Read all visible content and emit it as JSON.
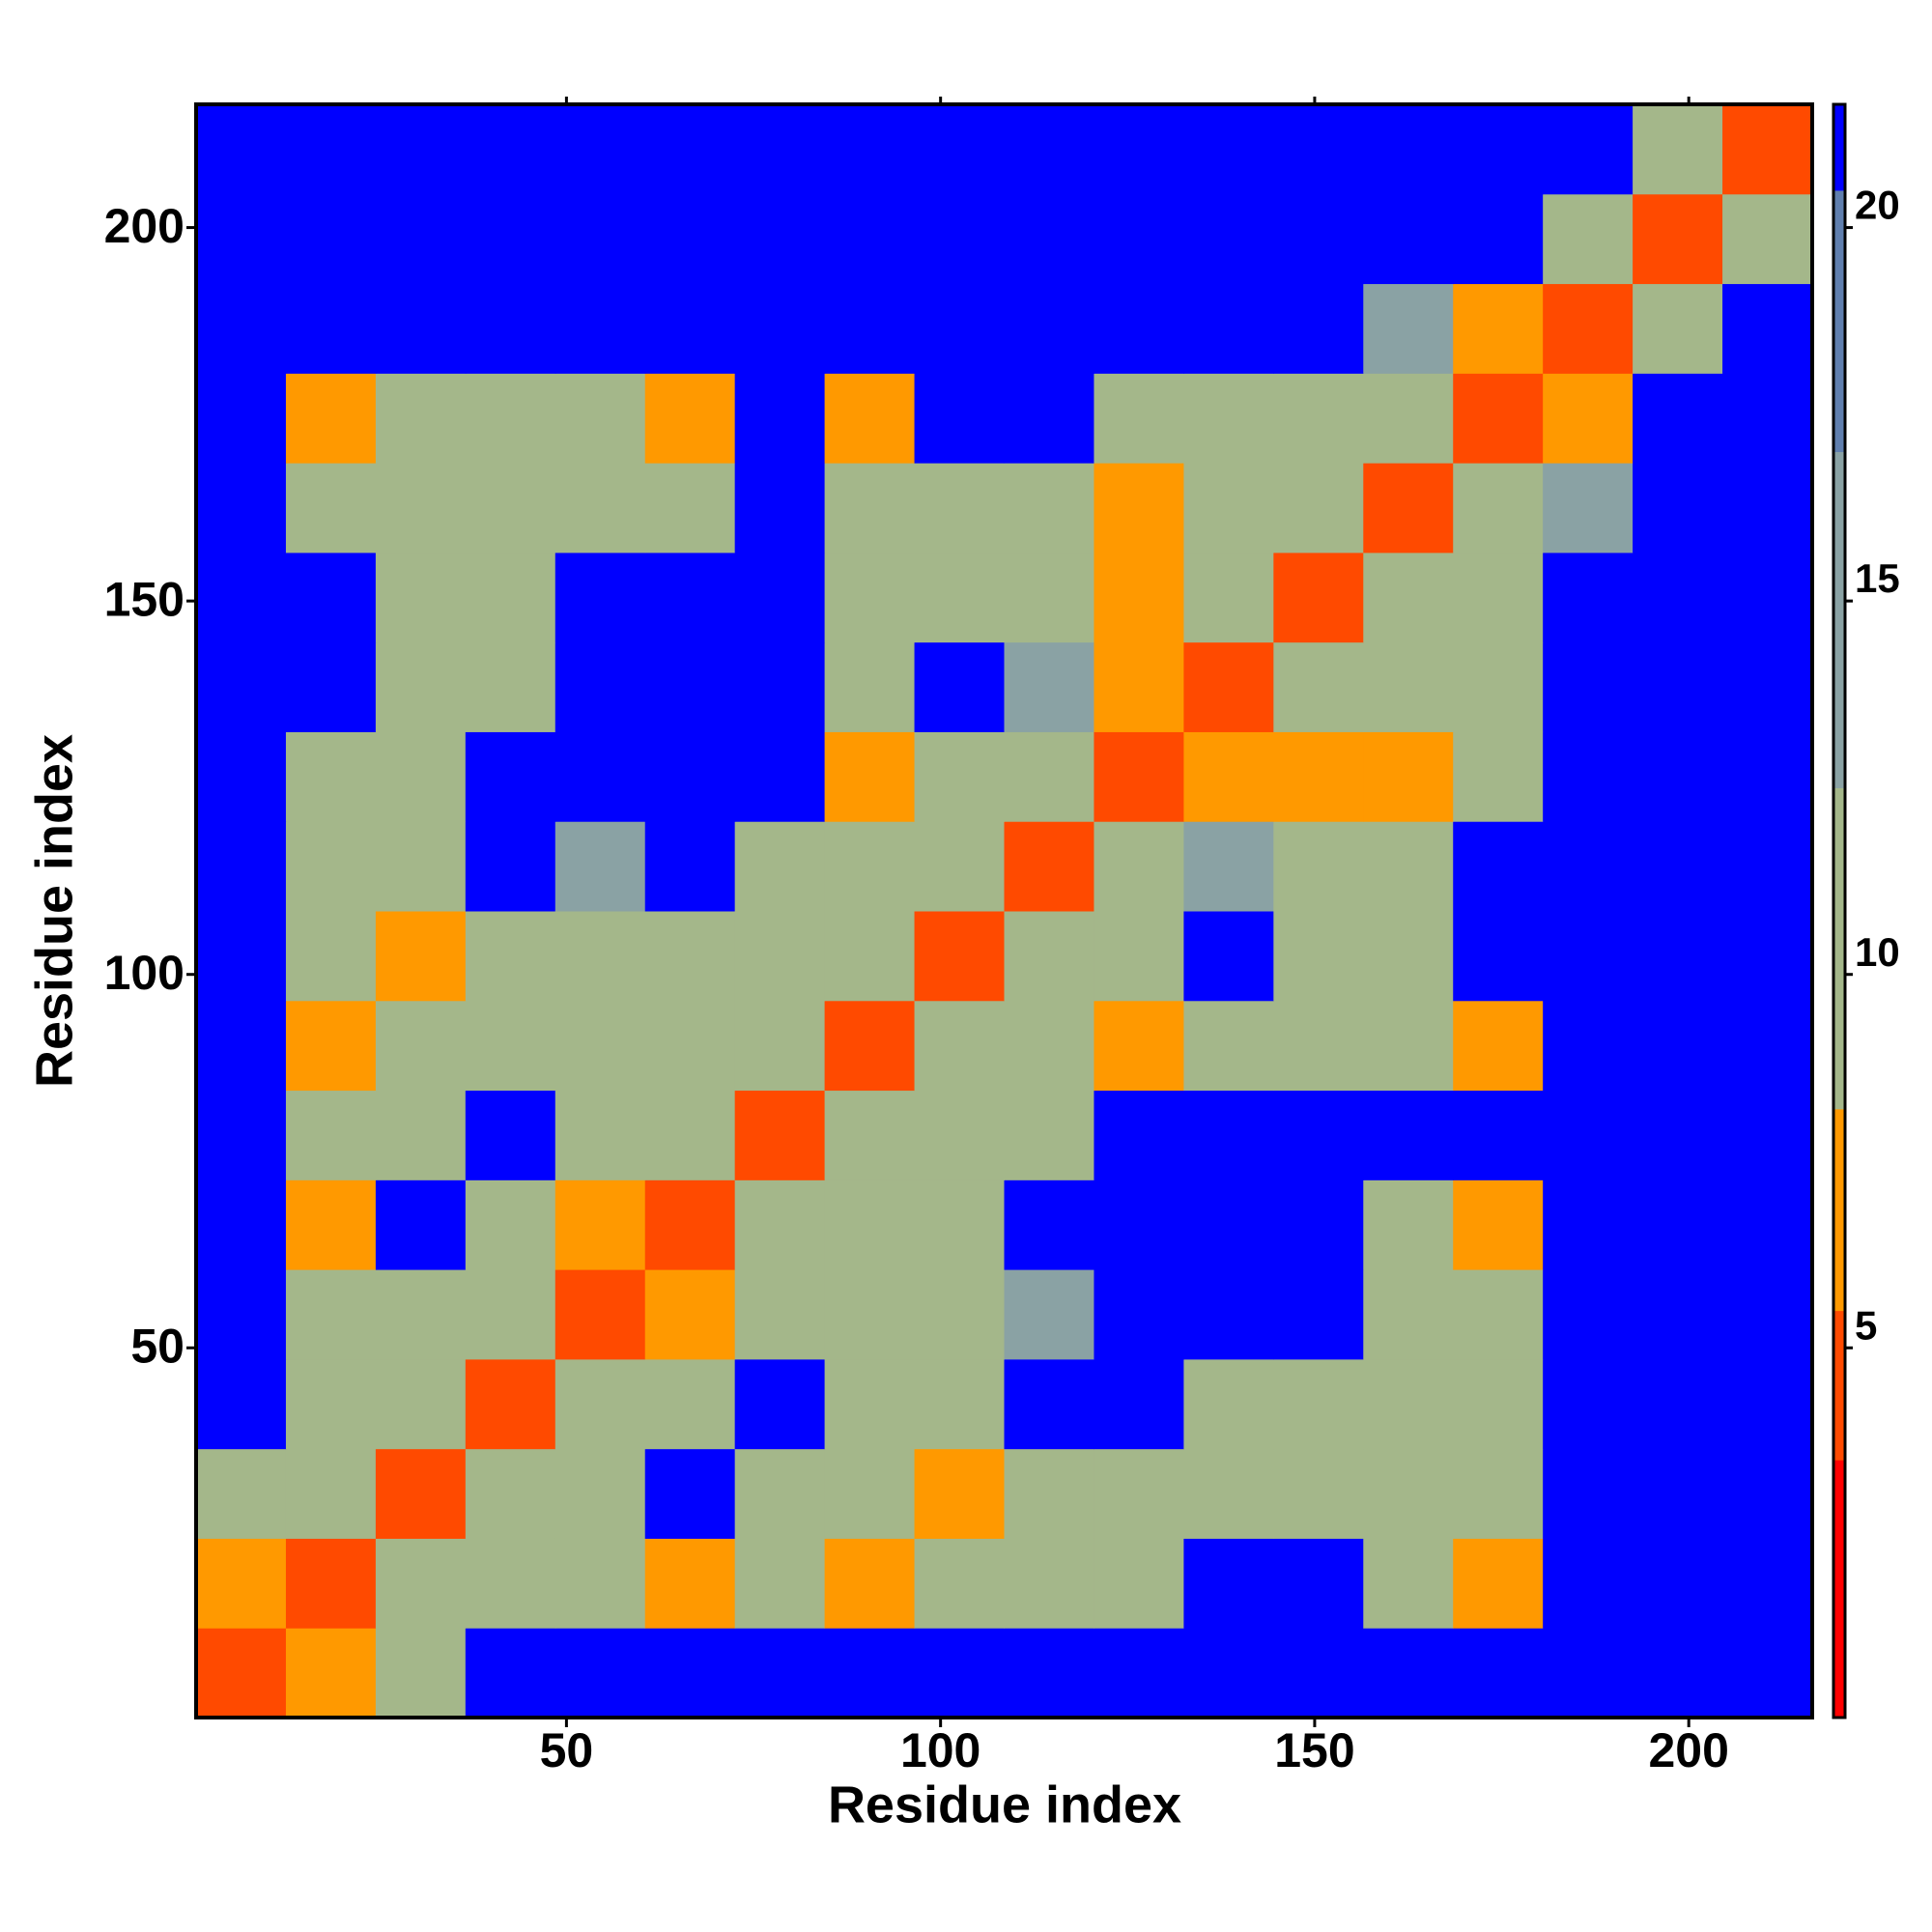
{
  "chart_data": {
    "type": "heatmap",
    "xlabel": "Residue index",
    "ylabel": "Residue index",
    "bins": [
      0.5,
      12.5,
      24.5,
      36.5,
      48.5,
      60.5,
      72.5,
      84.5,
      96.5,
      108.5,
      120.5,
      132.5,
      144.5,
      156.5,
      168.5,
      180.5,
      192.5,
      204.5,
      216.5
    ],
    "xlim": [
      0.5,
      216.5
    ],
    "ylim": [
      0.5,
      216.5
    ],
    "xticks": [
      50,
      100,
      150,
      200
    ],
    "yticks": [
      50,
      100,
      150,
      200
    ],
    "values": [
      [
        4,
        8,
        12,
        21.5,
        21.5,
        21.5,
        21.5,
        21.5,
        21.5,
        21.5,
        21.5,
        21.5,
        21.5,
        21.5,
        21.5,
        21.5,
        21.5,
        21.5
      ],
      [
        8,
        4,
        9,
        11,
        12,
        6,
        10,
        6,
        11,
        12,
        11,
        21.5,
        21.5,
        12,
        7,
        21.5,
        21.5,
        21.5
      ],
      [
        12,
        9,
        4,
        9,
        12,
        21.5,
        11,
        10,
        8,
        12,
        9,
        11,
        12,
        9,
        12,
        21.5,
        21.5,
        21.5
      ],
      [
        21.5,
        11,
        9,
        4,
        9,
        12,
        21.5,
        12,
        12,
        21.5,
        21.5,
        12,
        12,
        10,
        12,
        21.5,
        21.5,
        21.5
      ],
      [
        21.5,
        12,
        12,
        9,
        4,
        6,
        9,
        11,
        12,
        13,
        21.5,
        21.5,
        21.5,
        12,
        12,
        21.5,
        21.5,
        21.5
      ],
      [
        21.5,
        6,
        21.5,
        12,
        6,
        4,
        9,
        10,
        12,
        21.5,
        21.5,
        21.5,
        21.5,
        12,
        7,
        21.5,
        21.5,
        21.5
      ],
      [
        21.5,
        10,
        11,
        21.5,
        9,
        9,
        4,
        9,
        11,
        12,
        21.5,
        21.5,
        21.5,
        21.5,
        21.5,
        21.5,
        21.5,
        21.5
      ],
      [
        21.5,
        6,
        10,
        12,
        11,
        10,
        9,
        4,
        9,
        11,
        7,
        12,
        11,
        11,
        7,
        21.5,
        21.5,
        21.5
      ],
      [
        21.5,
        11,
        8,
        12,
        12,
        12,
        11,
        9,
        4,
        9,
        10,
        21.5,
        12,
        12,
        21.5,
        21.5,
        21.5,
        21.5
      ],
      [
        21.5,
        12,
        12,
        21.5,
        13,
        21.5,
        12,
        11,
        9,
        4,
        9,
        13,
        11,
        12,
        21.5,
        21.5,
        21.5,
        21.5
      ],
      [
        21.5,
        11,
        9,
        21.5,
        21.5,
        21.5,
        21.5,
        7,
        10,
        9,
        4,
        8,
        7,
        7,
        10,
        21.5,
        21.5,
        21.5
      ],
      [
        21.5,
        21.5,
        11,
        12,
        21.5,
        21.5,
        21.5,
        12,
        21.5,
        13,
        8,
        4,
        9,
        10,
        12,
        21.5,
        21.5,
        21.5
      ],
      [
        21.5,
        21.5,
        12,
        12,
        21.5,
        21.5,
        21.5,
        11,
        12,
        11,
        7,
        9,
        4,
        9,
        10,
        21.5,
        21.5,
        21.5
      ],
      [
        21.5,
        12,
        9,
        10,
        12,
        12,
        21.5,
        11,
        12,
        12,
        7,
        10,
        9,
        4,
        9,
        13,
        21.5,
        21.5
      ],
      [
        21.5,
        7,
        12,
        12,
        12,
        7,
        21.5,
        7,
        21.5,
        21.5,
        10,
        12,
        10,
        9,
        4,
        8,
        21.5,
        21.5
      ],
      [
        21.5,
        21.5,
        21.5,
        21.5,
        21.5,
        21.5,
        21.5,
        21.5,
        21.5,
        21.5,
        21.5,
        21.5,
        21.5,
        13,
        8,
        4,
        9,
        21.5
      ],
      [
        21.5,
        21.5,
        21.5,
        21.5,
        21.5,
        21.5,
        21.5,
        21.5,
        21.5,
        21.5,
        21.5,
        21.5,
        21.5,
        21.5,
        21.5,
        9,
        4,
        10
      ],
      [
        21.5,
        21.5,
        21.5,
        21.5,
        21.5,
        21.5,
        21.5,
        21.5,
        21.5,
        21.5,
        21.5,
        21.5,
        21.5,
        21.5,
        21.5,
        21.5,
        10,
        4
      ]
    ],
    "colorbar": {
      "lim": [
        0.05,
        21.65
      ],
      "ticks": [
        5,
        10,
        15,
        20
      ],
      "breaks": [
        3.5,
        5.5,
        8.2,
        12.5,
        17,
        20.5
      ],
      "colors": [
        "#ff0000",
        "#ff4a00",
        "#ff9900",
        "#a4b78a",
        "#8aa2a4",
        "#607fae",
        "#0000ff"
      ]
    }
  }
}
